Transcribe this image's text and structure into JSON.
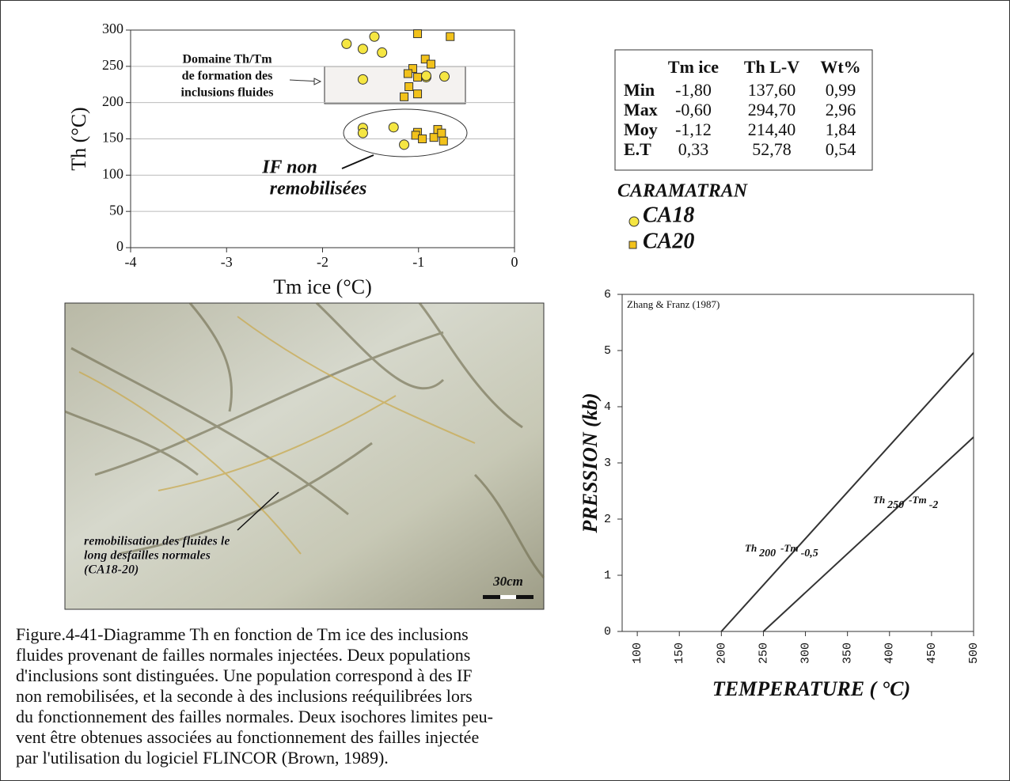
{
  "chart_data": [
    {
      "type": "scatter",
      "x_label": "Tm ice (°C)",
      "y_label": "Th (°C)",
      "xlim": [
        -4,
        0
      ],
      "ylim": [
        0,
        300
      ],
      "xticks": [
        -4,
        -3,
        -2,
        -1,
        0
      ],
      "yticks": [
        0,
        50,
        100,
        150,
        200,
        250,
        300
      ],
      "grid": "y",
      "legend_title": "CARAMATRAN",
      "series": [
        {
          "name": "CA18",
          "marker": "circle",
          "color": "#f5e642",
          "x": [
            -1.75,
            -1.58,
            -1.46,
            -1.38,
            -1.58,
            -1.58,
            -1.58,
            -1.26,
            -1.15,
            -0.92,
            -0.92,
            -0.73
          ],
          "values": [
            281,
            274,
            291,
            269,
            232,
            165,
            158,
            166,
            142,
            235,
            237,
            236
          ]
        },
        {
          "name": "CA20",
          "marker": "square",
          "color": "#f2c21b",
          "x": [
            -1.01,
            -0.67,
            -0.93,
            -0.87,
            -1.06,
            -1.11,
            -1.01,
            -1.1,
            -1.01,
            -1.15,
            -1.01,
            -1.03,
            -0.96,
            -0.84,
            -0.8,
            -0.76,
            -0.74
          ],
          "values": [
            295,
            291,
            260,
            253,
            247,
            240,
            235,
            222,
            212,
            208,
            159,
            155,
            150,
            152,
            163,
            158,
            147
          ]
        }
      ],
      "annotations": [
        [
          "Domaine Th/Tm",
          "de formation des",
          "inclusions fluides"
        ],
        [
          "IF non",
          "remobilisées"
        ]
      ]
    },
    {
      "type": "line",
      "x_label": "TEMPERATURE ( °C)",
      "y_label": "PRESSION (kb)",
      "source": "Zhang & Franz (1987)",
      "xlim": [
        82,
        500
      ],
      "ylim": [
        0,
        6
      ],
      "xticks": [
        100,
        150,
        200,
        250,
        300,
        350,
        400,
        450,
        500
      ],
      "yticks": [
        0,
        1,
        2,
        3,
        4,
        5,
        6
      ],
      "series": [
        {
          "color": "#333333",
          "x": [
            200,
            500
          ],
          "values": [
            0,
            4.96
          ],
          "label": [
            "Th",
            "200",
            "-Tm",
            "-0,5"
          ]
        },
        {
          "color": "#333333",
          "x": [
            250,
            500
          ],
          "values": [
            0,
            3.46
          ],
          "label": [
            "Th",
            "250",
            "-Tm",
            "-2"
          ]
        }
      ]
    }
  ],
  "table": {
    "header": [
      "",
      "Tm ice",
      "Th L-V",
      "Wt%"
    ],
    "rows": [
      [
        "Min",
        "-1,80",
        "137,60",
        "0,99"
      ],
      [
        "Max",
        "-0,60",
        "294,70",
        "2,96"
      ],
      [
        "Moy",
        "-1,12",
        "214,40",
        "1,84"
      ],
      [
        "E.T",
        "0,33",
        "52,78",
        "0,54"
      ]
    ]
  },
  "photo": {
    "annotation": [
      "remobilisation des fluides le",
      "long desfailles normales",
      "(CA18-20)"
    ],
    "scale": "30cm"
  },
  "caption": [
    "Figure.4-41-Diagramme Th en fonction de Tm ice des inclusions",
    "fluides provenant de failles normales injectées. Deux populations",
    "d'inclusions sont  distinguées. Une population correspond à des IF",
    "non remobilisées, et la seconde à des inclusions reéquilibrées lors",
    "du fonctionnement des failles normales. Deux isochores limites peu-",
    "vent être obtenues associées au fonctionnement des failles injectée",
    "par l'utilisation du logiciel FLINCOR (Brown, 1989)."
  ]
}
